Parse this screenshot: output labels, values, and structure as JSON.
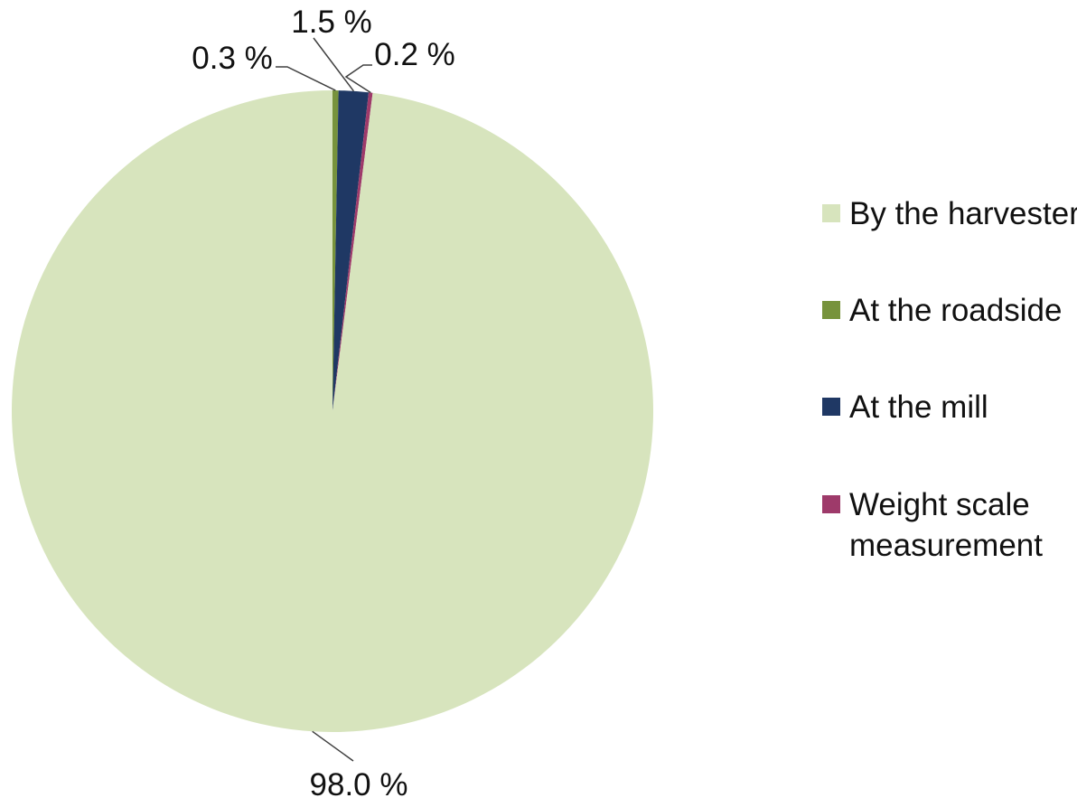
{
  "chart_data": {
    "type": "pie",
    "title": "",
    "series": [
      {
        "values": [
          98.0,
          0.3,
          1.5,
          0.2
        ],
        "labels": [
          "98.0 %",
          "0.3 %",
          "1.5 %",
          "0.2 %"
        ]
      }
    ],
    "categories": [
      "By the harvester",
      "At the roadside",
      "At the mill",
      "Weight scale measurement"
    ],
    "legend": {
      "position": "right",
      "items": [
        {
          "label": "By the harvester",
          "color": "#d7e4bd"
        },
        {
          "label": "At the roadside",
          "color": "#77933c"
        },
        {
          "label": "At the mill",
          "color": "#1f3864"
        },
        {
          "label": "Weight scale measurement",
          "color": "#9e3a6a"
        }
      ]
    },
    "colors": [
      "#d7e4bd",
      "#77933c",
      "#1f3864",
      "#9e3a6a"
    ],
    "slice_order": "clockwise from 12 o'clock: At the roadside, At the mill, Weight scale measurement, By the harvester"
  }
}
